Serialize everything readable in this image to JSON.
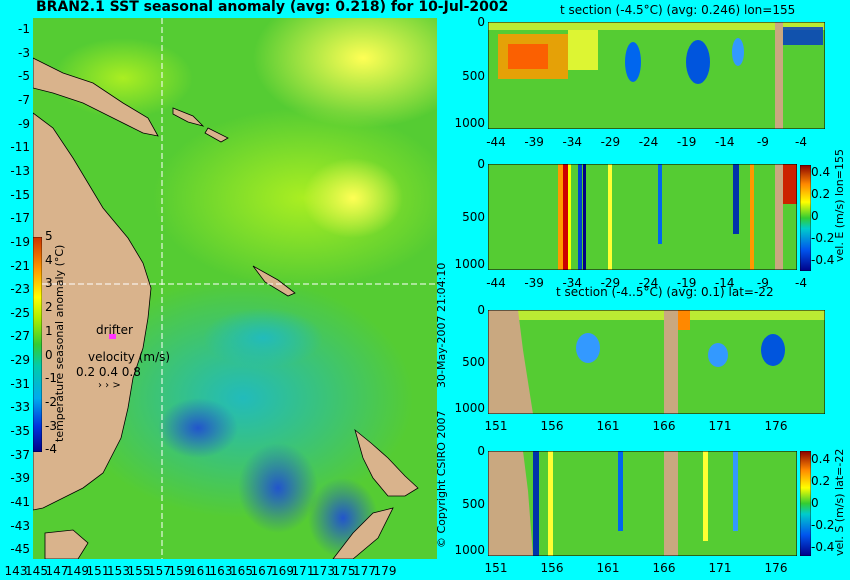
{
  "main_title": "BRAN2.1 SST seasonal anomaly (avg: 0.218) for 10-Jul-2002",
  "map": {
    "lat_labels": [
      "-1",
      "-3",
      "-5",
      "-7",
      "-9",
      "-11",
      "-13",
      "-15",
      "-17",
      "-19",
      "-21",
      "-23",
      "-25",
      "-27",
      "-29",
      "-31",
      "-33",
      "-35",
      "-37",
      "-39",
      "-41",
      "-43",
      "-45"
    ],
    "lon_labels": [
      "143",
      "145",
      "147",
      "149",
      "151",
      "153",
      "155",
      "157",
      "159",
      "161",
      "163",
      "165",
      "167",
      "169",
      "171",
      "173",
      "175",
      "177",
      "179"
    ],
    "colorbar_ticks": [
      "5",
      "4",
      "3",
      "2",
      "1",
      "0",
      "-1",
      "-2",
      "-3",
      "-4"
    ],
    "colorbar_label": "temperature seasonal anomaly (°C)",
    "drifter_label": "drifter",
    "velocity_label": "velocity (m/s)",
    "velocity_scale": "0.2 0.4 0.8",
    "copyright": "© Copyright CSIRO 2007",
    "date_stamp": "30-May-2007 21:04:10"
  },
  "panels": [
    {
      "title": "t section (-4.5°C) (avg: 0.246) lon=155",
      "x_ticks": [
        "-44",
        "-39",
        "-34",
        "-29",
        "-24",
        "-19",
        "-14",
        "-9",
        "-4"
      ],
      "y_ticks": [
        "0",
        "500",
        "1000"
      ]
    },
    {
      "title": "",
      "x_ticks": [
        "-44",
        "-39",
        "-34",
        "-29",
        "-24",
        "-19",
        "-14",
        "-9",
        "-4"
      ],
      "y_ticks": [
        "0",
        "500",
        "1000"
      ],
      "cbar_ticks": [
        "0.4",
        "0.2",
        "0",
        "-0.2",
        "-0.4"
      ],
      "cbar_label": "vel. E (m/s) lon=155"
    },
    {
      "title": "t section (-4..5°C) (avg: 0.1) lat=-22",
      "x_ticks": [
        "151",
        "156",
        "161",
        "166",
        "171",
        "176"
      ],
      "y_ticks": [
        "0",
        "500",
        "1000"
      ]
    },
    {
      "title": "",
      "x_ticks": [
        "151",
        "156",
        "161",
        "166",
        "171",
        "176"
      ],
      "y_ticks": [
        "0",
        "500",
        "1000"
      ],
      "cbar_ticks": [
        "0.4",
        "0.2",
        "0",
        "-0.2",
        "-0.4"
      ],
      "cbar_label": "vel. S (m/s) lat=-22"
    }
  ],
  "colors": {
    "background": "#00ffff",
    "land": "#d9b38c",
    "ocean_base": "#55cc33"
  },
  "chart_data": [
    {
      "type": "heatmap",
      "title": "BRAN2.1 SST seasonal anomaly (avg: 0.218) for 10-Jul-2002",
      "xlabel": "",
      "ylabel": "",
      "xlim": [
        143,
        180
      ],
      "ylim": [
        -45,
        0
      ],
      "colorbar_label": "temperature seasonal anomaly (°C)",
      "colorbar_range": [
        -4,
        5
      ],
      "section_lines": {
        "lon": 155,
        "lat": -22
      }
    },
    {
      "type": "heatmap",
      "title": "t section (-4.5°C) (avg: 0.246) lon=155",
      "xlim": [
        -45,
        -1
      ],
      "ylim": [
        1050,
        0
      ]
    },
    {
      "type": "heatmap",
      "title": "",
      "xlim": [
        -45,
        -1
      ],
      "ylim": [
        1050,
        0
      ],
      "colorbar_label": "vel. E (m/s) lon=155",
      "colorbar_range": [
        -0.4,
        0.4
      ]
    },
    {
      "type": "heatmap",
      "title": "t section (-4..5°C) (avg: 0.1) lat=-22",
      "xlim": [
        150,
        180
      ],
      "ylim": [
        1050,
        0
      ]
    },
    {
      "type": "heatmap",
      "title": "",
      "xlim": [
        150,
        180
      ],
      "ylim": [
        1050,
        0
      ],
      "colorbar_label": "vel. S (m/s) lat=-22",
      "colorbar_range": [
        -0.4,
        0.4
      ]
    }
  ]
}
